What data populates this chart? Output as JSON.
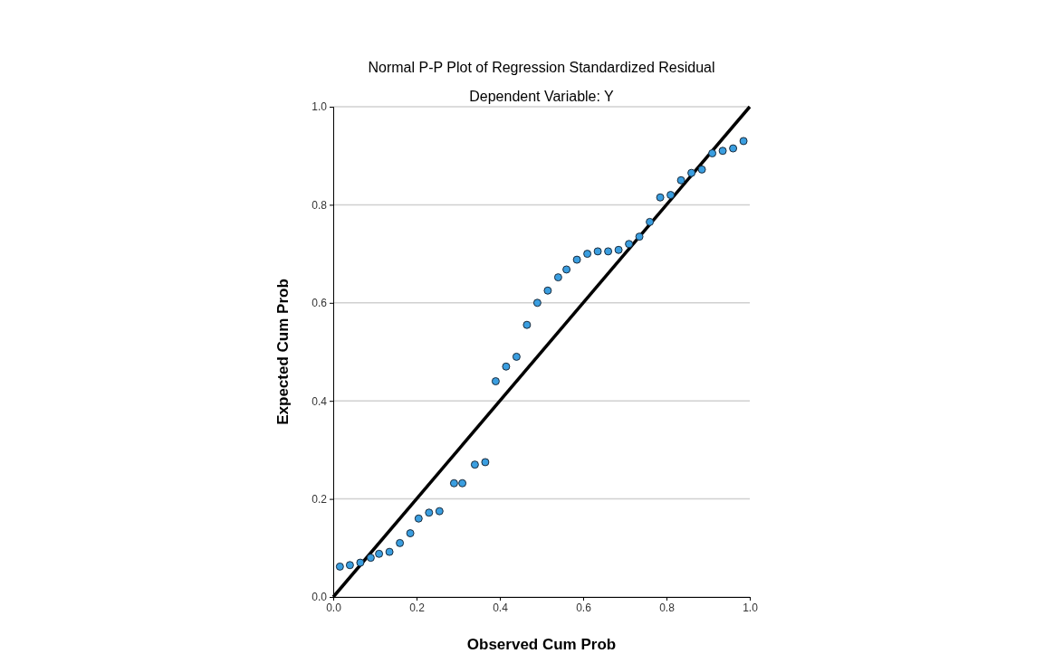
{
  "chart_data": {
    "type": "scatter",
    "title": "Normal P-P Plot of Regression Standardized Residual",
    "subtitle": "Dependent Variable: Y",
    "xlabel": "Observed Cum Prob",
    "ylabel": "Expected Cum Prob",
    "xlim": [
      0,
      1
    ],
    "ylim": [
      0,
      1
    ],
    "xticks": [
      {
        "value": 0,
        "label": "0.0"
      },
      {
        "value": 0.2,
        "label": "0.2"
      },
      {
        "value": 0.4,
        "label": "0.4"
      },
      {
        "value": 0.6,
        "label": "0.6"
      },
      {
        "value": 0.8,
        "label": "0.8"
      },
      {
        "value": 1,
        "label": "1.0"
      }
    ],
    "yticks": [
      {
        "value": 0,
        "label": "0.0"
      },
      {
        "value": 0.2,
        "label": "0.2"
      },
      {
        "value": 0.4,
        "label": "0.4"
      },
      {
        "value": 0.6,
        "label": "0.6"
      },
      {
        "value": 0.8,
        "label": "0.8"
      },
      {
        "value": 1,
        "label": "1.0"
      }
    ],
    "grid": "y",
    "series": [
      {
        "marker": "circle",
        "color": "#3a9ee0",
        "x": [
          0.016,
          0.04,
          0.065,
          0.09,
          0.11,
          0.135,
          0.16,
          0.185,
          0.205,
          0.23,
          0.255,
          0.29,
          0.31,
          0.34,
          0.365,
          0.39,
          0.415,
          0.44,
          0.465,
          0.49,
          0.515,
          0.54,
          0.56,
          0.585,
          0.61,
          0.635,
          0.66,
          0.685,
          0.71,
          0.735,
          0.76,
          0.785,
          0.81,
          0.835,
          0.86,
          0.885,
          0.91,
          0.935,
          0.96,
          0.985
        ],
        "values": [
          0.062,
          0.065,
          0.07,
          0.08,
          0.088,
          0.092,
          0.11,
          0.13,
          0.16,
          0.172,
          0.175,
          0.232,
          0.232,
          0.27,
          0.275,
          0.44,
          0.47,
          0.49,
          0.555,
          0.6,
          0.625,
          0.652,
          0.668,
          0.688,
          0.7,
          0.705,
          0.705,
          0.708,
          0.72,
          0.735,
          0.765,
          0.815,
          0.82,
          0.85,
          0.865,
          0.872,
          0.905,
          0.91,
          0.915,
          0.93
        ]
      },
      {
        "type": "line",
        "marker": "none",
        "color": "#000000",
        "x": [
          0,
          1
        ],
        "values": [
          0,
          1
        ]
      }
    ]
  }
}
